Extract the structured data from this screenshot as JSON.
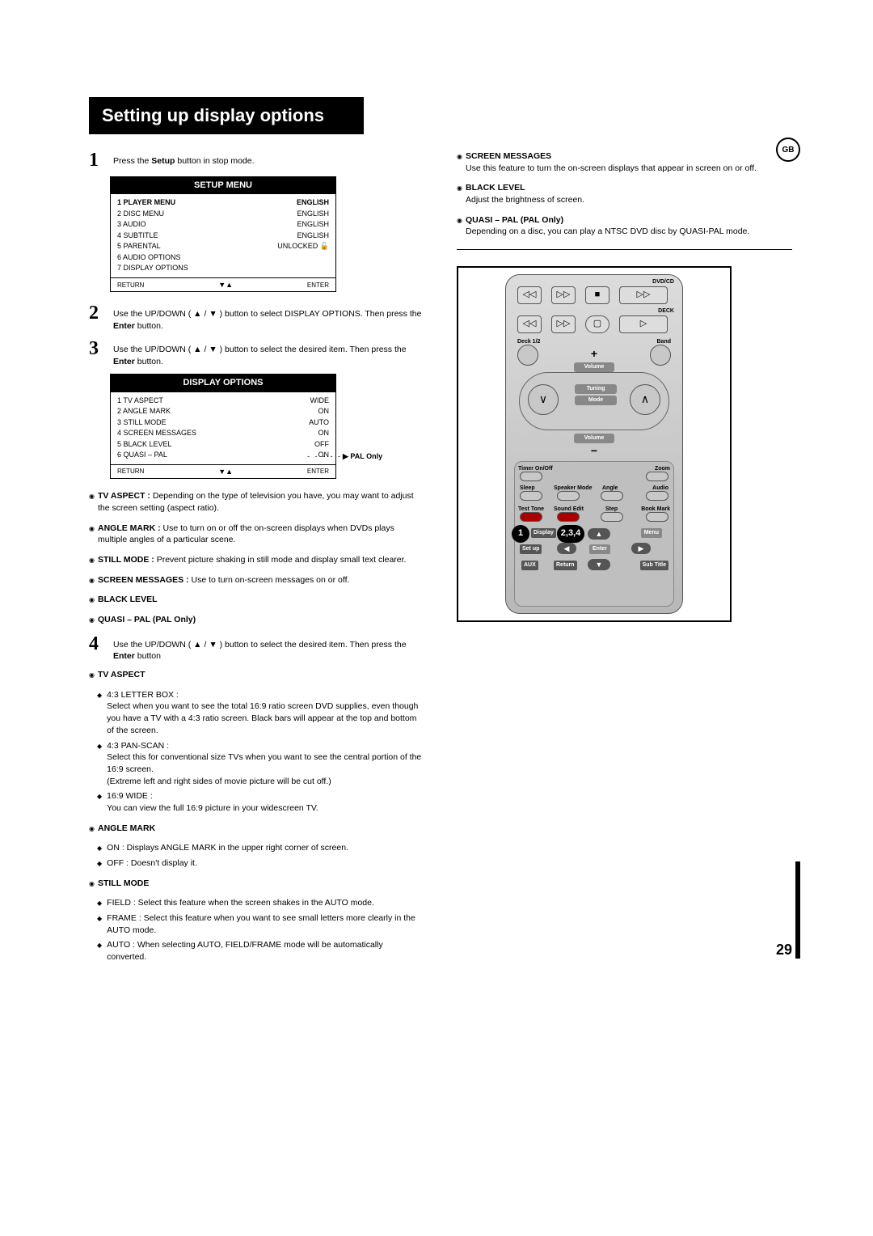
{
  "title": "Setting up display options",
  "gb_label": "GB",
  "page_number": "29",
  "steps": {
    "s1": {
      "num": "1",
      "text_pre": "Press the ",
      "bold": "Setup",
      "text_post": " button in stop mode."
    },
    "s2": {
      "num": "2",
      "text": "Use the UP/DOWN ( ▲ / ▼ ) button to select DISPLAY OPTIONS. Then press the ",
      "bold": "Enter",
      "tail": " button."
    },
    "s3": {
      "num": "3",
      "text": "Use the UP/DOWN ( ▲ / ▼ ) button to select the desired item. Then press the ",
      "bold": "Enter",
      "tail": " button."
    },
    "s4": {
      "num": "4",
      "text": "Use the UP/DOWN ( ▲ / ▼ ) button to select the desired item. Then press the ",
      "bold": "Enter",
      "tail": " button"
    }
  },
  "setup_menu": {
    "header": "SETUP MENU",
    "rows": [
      {
        "l": "1 PLAYER MENU",
        "r": "ENGLISH",
        "bold": true
      },
      {
        "l": "2 DISC MENU",
        "r": "ENGLISH"
      },
      {
        "l": "3 AUDIO",
        "r": "ENGLISH"
      },
      {
        "l": "4 SUBTITLE",
        "r": "ENGLISH"
      },
      {
        "l": "5 PARENTAL",
        "r": "UNLOCKED 🔓"
      },
      {
        "l": "6 AUDIO OPTIONS",
        "r": ""
      },
      {
        "l": "7 DISPLAY OPTIONS",
        "r": ""
      }
    ],
    "footer_l": "RETURN",
    "footer_m": "▼▲",
    "footer_r": "ENTER"
  },
  "display_options": {
    "header": "DISPLAY OPTIONS",
    "rows": [
      {
        "l": "1 TV ASPECT",
        "r": "WIDE"
      },
      {
        "l": "2 ANGLE MARK",
        "r": "ON"
      },
      {
        "l": "3 STILL MODE",
        "r": "AUTO"
      },
      {
        "l": "4 SCREEN MESSAGES",
        "r": "ON"
      },
      {
        "l": "5 BLACK LEVEL",
        "r": "OFF"
      },
      {
        "l": "6 QUASI – PAL",
        "r": "ON"
      }
    ],
    "footer_l": "RETURN",
    "footer_m": "▼▲",
    "footer_r": "ENTER",
    "pal_callout": "▶  PAL Only"
  },
  "defs": {
    "tv_aspect": {
      "label": "TV ASPECT :",
      "text": "Depending on the type of television you have, you may want to adjust the screen setting (aspect ratio)."
    },
    "angle_mark": {
      "label": "ANGLE MARK :",
      "text": "Use to turn on or off the on-screen displays when DVDs plays multiple angles of a particular scene."
    },
    "still_mode": {
      "label": "STILL MODE :",
      "text": "Prevent picture shaking in still mode and display small text clearer."
    },
    "screen_msg": {
      "label": "SCREEN MESSAGES :",
      "text": "Use to turn on-screen messages on or off."
    },
    "black_level": {
      "label": "BLACK LEVEL"
    },
    "quasi_pal": {
      "label": "QUASI – PAL (PAL Only)"
    }
  },
  "tv_aspect_section": {
    "heading": "TV ASPECT",
    "items": [
      {
        "head": "4:3 LETTER BOX :",
        "body": "Select when you want to see the total 16:9 ratio screen DVD supplies, even though you have a TV with a 4:3 ratio screen. Black bars will appear at the top and bottom of the screen."
      },
      {
        "head": "4:3 PAN-SCAN :",
        "body": "Select this for conventional size TVs when you want to see the central portion of the 16:9 screen.\n(Extreme left and right sides of movie picture will be cut off.)"
      },
      {
        "head": "16:9 WIDE :",
        "body": "You can view the full 16:9 picture in your widescreen TV."
      }
    ]
  },
  "angle_mark_section": {
    "heading": "ANGLE MARK",
    "items": [
      {
        "head": "ON :",
        "body": "Displays ANGLE MARK in the upper right corner of screen."
      },
      {
        "head": "OFF :",
        "body": "Doesn't display it."
      }
    ]
  },
  "still_mode_section": {
    "heading": "STILL MODE",
    "items": [
      {
        "head": "FIELD :",
        "body": "Select this feature when the screen shakes in the AUTO mode."
      },
      {
        "head": "FRAME :",
        "body": "Select this feature when you want to see small letters more clearly in the AUTO mode."
      },
      {
        "head": "AUTO :",
        "body": "When selecting AUTO, FIELD/FRAME mode will be automatically converted."
      }
    ]
  },
  "right_col": {
    "screen_messages": {
      "label": "SCREEN MESSAGES",
      "text": "Use this feature to turn the on-screen displays that appear in screen on or off."
    },
    "black_level": {
      "label": "BLACK LEVEL",
      "text": "Adjust the brightness of screen."
    },
    "quasi_pal": {
      "label": "QUASI – PAL (PAL Only)",
      "text": "Depending on a disc, you can play a NTSC DVD disc by QUASI-PAL mode."
    }
  },
  "remote": {
    "dvd_cd": "DVD/CD",
    "deck": "DECK",
    "deck12": "Deck 1/2",
    "band": "Band",
    "volume": "Volume",
    "tuning": "Tuning",
    "mode": "Mode",
    "timer": "Timer On/Off",
    "zoom": "Zoom",
    "sleep": "Sleep",
    "speaker": "Speaker Mode",
    "angle": "Angle",
    "audio": "Audio",
    "test": "Test Tone",
    "sound": "Sound Edit",
    "step": "Step",
    "bookmark": "Book Mark",
    "display": "Display",
    "menu": "Menu",
    "setup": "Set up",
    "enter": "Enter",
    "aux": "AUX",
    "return": "Return",
    "subtitle": "Sub Title",
    "callout1": "1",
    "callout234": "2,3,4"
  }
}
